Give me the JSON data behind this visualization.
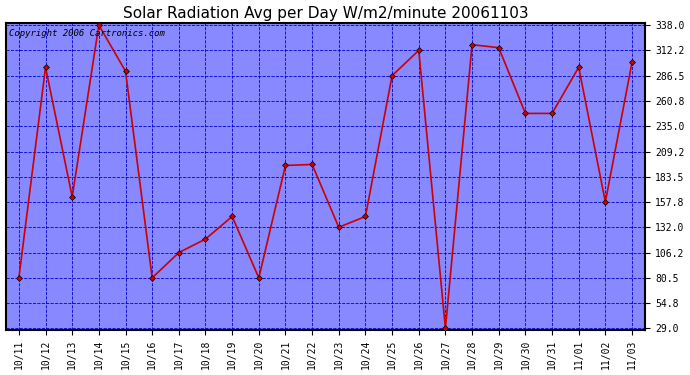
{
  "title": "Solar Radiation Avg per Day W/m2/minute 20061103",
  "copyright": "Copyright 2006 Cartronics.com",
  "dates": [
    "10/11",
    "10/12",
    "10/13",
    "10/14",
    "10/15",
    "10/16",
    "10/17",
    "10/18",
    "10/19",
    "10/20",
    "10/21",
    "10/22",
    "10/23",
    "10/24",
    "10/25",
    "10/26",
    "10/27",
    "10/28",
    "10/29",
    "10/30",
    "10/31",
    "11/01",
    "11/02",
    "11/03"
  ],
  "values": [
    80.5,
    295.0,
    163.0,
    338.0,
    291.0,
    80.5,
    106.2,
    120.0,
    143.0,
    80.5,
    195.0,
    196.0,
    132.0,
    143.0,
    286.5,
    312.2,
    29.0,
    318.0,
    315.0,
    248.0,
    248.0,
    295.0,
    157.8,
    300.0
  ],
  "line_color": "#cc0000",
  "marker_facecolor": "#cc0000",
  "marker_edgecolor": "#000000",
  "plot_bg_color": "#8888ff",
  "fig_bg_color": "#ffffff",
  "grid_color": "#0000cc",
  "yticks": [
    29.0,
    54.8,
    80.5,
    106.2,
    132.0,
    157.8,
    183.5,
    209.2,
    235.0,
    260.8,
    286.5,
    312.2,
    338.0
  ],
  "ymin": 29.0,
  "ymax": 338.0,
  "title_fontsize": 11,
  "tick_fontsize": 7,
  "copyright_fontsize": 6.5
}
